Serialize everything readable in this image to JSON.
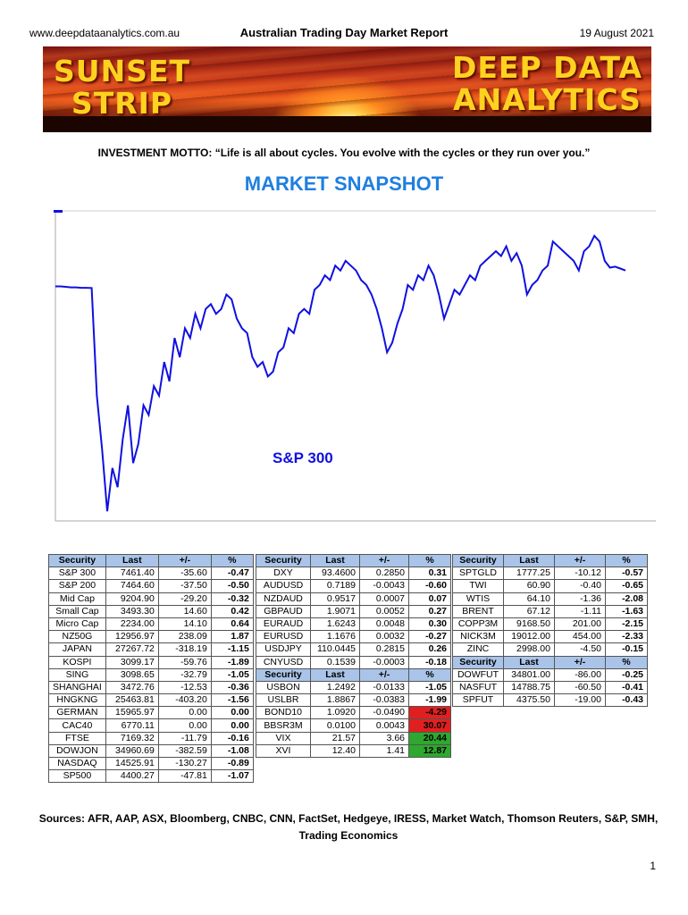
{
  "header": {
    "website": "www.deepdataanalytics.com.au",
    "title": "Australian Trading Day Market Report",
    "date": "19 August 2021"
  },
  "banner": {
    "left_line1": "SUNSET",
    "left_line2": "STRIP",
    "right_line1": "DEEP DATA",
    "right_line2": "ANALYTICS"
  },
  "motto": "INVESTMENT MOTTO: “Life is all about cycles. You evolve with the cycles or they run over you.”",
  "snapshot_title": "MARKET SNAPSHOT",
  "chart_data": {
    "type": "line",
    "title": "S&P 300",
    "xlabel": "",
    "ylabel": "",
    "grid": false,
    "color": "#1010e0",
    "series": [
      {
        "values": [
          6935,
          6935,
          6930,
          6925,
          6925,
          6920,
          6920,
          6918,
          5800,
          5250,
          4600,
          5050,
          4850,
          5350,
          5700,
          5100,
          5300,
          5700,
          5600,
          5900,
          5800,
          6150,
          5950,
          6400,
          6200,
          6500,
          6400,
          6650,
          6500,
          6700,
          6750,
          6650,
          6700,
          6850,
          6800,
          6600,
          6500,
          6450,
          6200,
          6100,
          6150,
          6000,
          6050,
          6250,
          6300,
          6500,
          6450,
          6650,
          6700,
          6650,
          6900,
          6950,
          7050,
          7000,
          7150,
          7100,
          7200,
          7150,
          7100,
          7000,
          6950,
          6850,
          6700,
          6500,
          6250,
          6350,
          6550,
          6700,
          6950,
          6900,
          7050,
          7000,
          7150,
          7050,
          6850,
          6600,
          6750,
          6900,
          6850,
          6950,
          7050,
          7000,
          7150,
          7200,
          7250,
          7300,
          7250,
          7350,
          7200,
          7280,
          7150,
          6850,
          6950,
          7000,
          7100,
          7150,
          7400,
          7350,
          7300,
          7250,
          7200,
          7100,
          7300,
          7350,
          7460,
          7400,
          7200,
          7130,
          7140,
          7120,
          7100
        ]
      }
    ],
    "ylim": [
      4500,
      7700
    ]
  },
  "tables": {
    "headers": [
      "Security",
      "Last",
      "+/-",
      "%"
    ],
    "table1": [
      [
        "S&P 300",
        "7461.40",
        "-35.60",
        "-0.47"
      ],
      [
        "S&P 200",
        "7464.60",
        "-37.50",
        "-0.50"
      ],
      [
        "Mid Cap",
        "9204.90",
        "-29.20",
        "-0.32"
      ],
      [
        "Small Cap",
        "3493.30",
        "14.60",
        "0.42"
      ],
      [
        "Micro Cap",
        "2234.00",
        "14.10",
        "0.64"
      ],
      [
        "NZ50G",
        "12956.97",
        "238.09",
        "1.87"
      ],
      [
        "JAPAN",
        "27267.72",
        "-318.19",
        "-1.15"
      ],
      [
        "KOSPI",
        "3099.17",
        "-59.76",
        "-1.89"
      ],
      [
        "SING",
        "3098.65",
        "-32.79",
        "-1.05"
      ],
      [
        "SHANGHAI",
        "3472.76",
        "-12.53",
        "-0.36"
      ],
      [
        "HNGKNG",
        "25463.81",
        "-403.20",
        "-1.56"
      ],
      [
        "GERMAN",
        "15965.97",
        "0.00",
        "0.00"
      ],
      [
        "CAC40",
        "6770.11",
        "0.00",
        "0.00"
      ],
      [
        "FTSE",
        "7169.32",
        "-11.79",
        "-0.16"
      ],
      [
        "DOWJON",
        "34960.69",
        "-382.59",
        "-1.08"
      ],
      [
        "NASDAQ",
        "14525.91",
        "-130.27",
        "-0.89"
      ],
      [
        "SP500",
        "4400.27",
        "-47.81",
        "-1.07"
      ]
    ],
    "table2a": [
      [
        "DXY",
        "93.4600",
        "0.2850",
        "0.31"
      ],
      [
        "AUDUSD",
        "0.7189",
        "-0.0043",
        "-0.60"
      ],
      [
        "NZDAUD",
        "0.9517",
        "0.0007",
        "0.07"
      ],
      [
        "GBPAUD",
        "1.9071",
        "0.0052",
        "0.27"
      ],
      [
        "EURAUD",
        "1.6243",
        "0.0048",
        "0.30"
      ],
      [
        "EURUSD",
        "1.1676",
        "0.0032",
        "-0.27"
      ],
      [
        "USDJPY",
        "110.0445",
        "0.2815",
        "0.26"
      ],
      [
        "CNYUSD",
        "0.1539",
        "-0.0003",
        "-0.18"
      ]
    ],
    "table2b": [
      [
        "USBON",
        "1.2492",
        "-0.0133",
        "-1.05",
        ""
      ],
      [
        "USLBR",
        "1.8867",
        "-0.0383",
        "-1.99",
        ""
      ],
      [
        "BOND10",
        "1.0920",
        "-0.0490",
        "-4.29",
        "red"
      ],
      [
        "BBSR3M",
        "0.0100",
        "0.0043",
        "30.07",
        "red"
      ],
      [
        "VIX",
        "21.57",
        "3.66",
        "20.44",
        "green"
      ],
      [
        "XVI",
        "12.40",
        "1.41",
        "12.87",
        "green"
      ]
    ],
    "table3a": [
      [
        "SPTGLD",
        "1777.25",
        "-10.12",
        "-0.57"
      ],
      [
        "TWI",
        "60.90",
        "-0.40",
        "-0.65"
      ],
      [
        "WTIS",
        "64.10",
        "-1.36",
        "-2.08"
      ],
      [
        "BRENT",
        "67.12",
        "-1.11",
        "-1.63"
      ],
      [
        "COPP3M",
        "9168.50",
        "201.00",
        "-2.15"
      ],
      [
        "NICK3M",
        "19012.00",
        "454.00",
        "-2.33"
      ],
      [
        "ZINC",
        "2998.00",
        "-4.50",
        "-0.15"
      ]
    ],
    "table3b": [
      [
        "DOWFUT",
        "34801.00",
        "-86.00",
        "-0.25"
      ],
      [
        "NASFUT",
        "14788.75",
        "-60.50",
        "-0.41"
      ],
      [
        "SPFUT",
        "4375.50",
        "-19.00",
        "-0.43"
      ]
    ]
  },
  "sources": "Sources: AFR, AAP, ASX,  Bloomberg, CNBC, CNN, FactSet, Hedgeye, IRESS, Market Watch, Thomson Reuters, S&P, SMH, Trading Economics",
  "page_number": "1"
}
